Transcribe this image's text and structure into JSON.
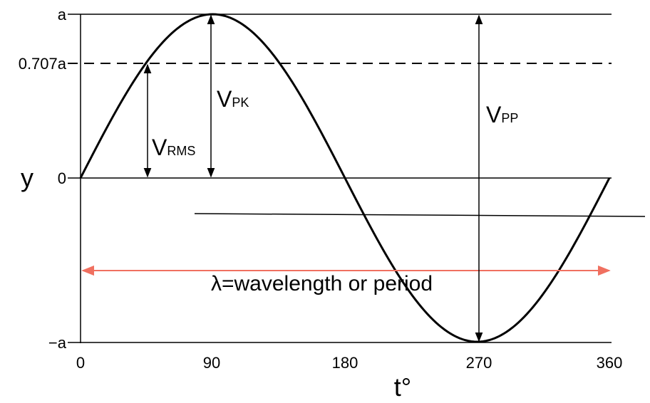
{
  "axis": {
    "y_name": "y",
    "x_name": "t°"
  },
  "y_ticks": [
    "a",
    "0.707a",
    "0",
    "−a"
  ],
  "x_ticks": [
    "0",
    "90",
    "180",
    "270",
    "360"
  ],
  "annotations": {
    "vrms_main": "V",
    "vrms_sub": "RMS",
    "vpk_main": "V",
    "vpk_sub": "PK",
    "vpp_main": "V",
    "vpp_sub": "PP",
    "wavelength": "λ=wavelength or period"
  },
  "colors": {
    "curve": "#000000",
    "wavelength_arrow": "#f07060"
  },
  "chart_data": {
    "type": "line",
    "series": [
      {
        "function": "sine",
        "x_start": 0,
        "x_end": 360,
        "amplitude": "a"
      }
    ],
    "xlim": [
      0,
      360
    ],
    "ylim": [
      "-a",
      "a"
    ],
    "reference_levels": [
      "a",
      "0.707a",
      "0",
      "-a"
    ],
    "x_tick_labels": [
      "0",
      "90",
      "180",
      "270",
      "360"
    ],
    "y_tick_labels": [
      "a",
      "0.707a",
      "0",
      "−a"
    ]
  }
}
